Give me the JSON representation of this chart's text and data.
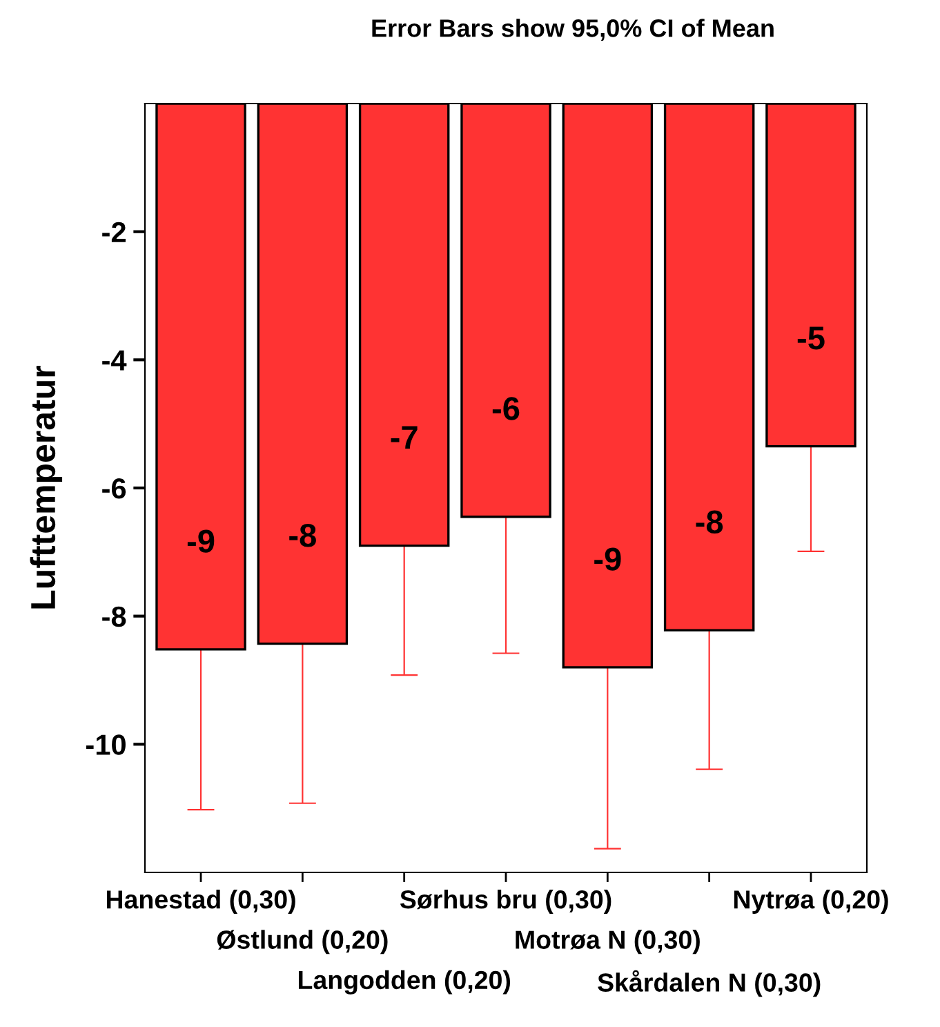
{
  "chart_data": {
    "type": "bar",
    "title": "Error Bars show 95,0% CI of Mean",
    "ylabel": "Lufttemperatur",
    "categories": [
      "Hanestad (0,30)",
      "Østlund (0,20)",
      "Langodden (0,20)",
      "Sørhus bru (0,30)",
      "Motrøa N (0,30)",
      "Skårdalen N (0,30)",
      "Nytrøa (0,20)"
    ],
    "values": [
      -8.52,
      -8.43,
      -6.9,
      -6.45,
      -8.8,
      -8.22,
      -5.35
    ],
    "errors": [
      2.5,
      2.49,
      2.02,
      2.13,
      2.83,
      2.17,
      1.64
    ],
    "value_labels": [
      "-9",
      "-8",
      "-7",
      "-6",
      "-9",
      "-8",
      "-5"
    ],
    "color": "#ff3333",
    "ylim": [
      -12,
      0
    ],
    "yticks": [
      -2,
      -4,
      -6,
      -8,
      -10
    ],
    "grid": false,
    "legend": false
  }
}
